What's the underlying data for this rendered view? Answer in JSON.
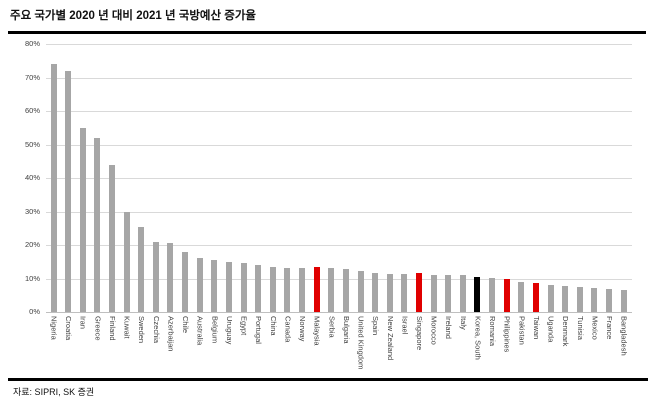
{
  "chart_data": {
    "type": "bar",
    "title": "주요 국가별 2020 년 대비 2021 년 국방예산 증가율",
    "source": "자료: SIPRI, SK 증권",
    "ylabel": "",
    "xlabel": "",
    "ylim": [
      0,
      80
    ],
    "yticks": [
      0,
      10,
      20,
      30,
      40,
      50,
      60,
      70,
      80
    ],
    "ytick_suffix": "%",
    "grid": "horizontal",
    "legend": "none",
    "categories": [
      "Nigeria",
      "Croatia",
      "Iran",
      "Greece",
      "Finland",
      "Kuwait",
      "Sweden",
      "Czechia",
      "Azerbaijan",
      "Chile",
      "Australia",
      "Belgium",
      "Uruguay",
      "Egypt",
      "Portugal",
      "China",
      "Canada",
      "Norway",
      "Malaysia",
      "Serbia",
      "Bulgaria",
      "United Kingdom",
      "Spain",
      "New Zealand",
      "Israel",
      "Singapore",
      "Morocco",
      "Ireland",
      "Italy",
      "Korea, South",
      "Romania",
      "Philippines",
      "Pakistan",
      "Taiwan",
      "Uganda",
      "Denmark",
      "Tunisia",
      "Mexico",
      "France",
      "Bangladesh"
    ],
    "values": [
      74,
      72,
      55,
      52,
      44,
      30,
      25.5,
      21,
      20.5,
      18,
      16,
      15.5,
      15,
      14.5,
      14,
      13.5,
      13.2,
      13.2,
      13.5,
      13,
      12.7,
      12.2,
      11.5,
      11.3,
      11.3,
      11.5,
      11,
      11,
      11,
      10.5,
      10.2,
      10,
      9,
      8.7,
      8,
      7.8,
      7.5,
      7.3,
      6.8,
      6.5
    ],
    "bar_colors": [
      "gray",
      "gray",
      "gray",
      "gray",
      "gray",
      "gray",
      "gray",
      "gray",
      "gray",
      "gray",
      "gray",
      "gray",
      "gray",
      "gray",
      "gray",
      "gray",
      "gray",
      "gray",
      "red",
      "gray",
      "gray",
      "gray",
      "gray",
      "gray",
      "gray",
      "red",
      "gray",
      "gray",
      "gray",
      "black",
      "gray",
      "red",
      "gray",
      "red",
      "gray",
      "gray",
      "gray",
      "gray",
      "gray",
      "gray"
    ],
    "highlight_red_countries": [
      "Malaysia",
      "Singapore",
      "Philippines",
      "Taiwan"
    ],
    "highlight_black_countries": [
      "Korea, South"
    ],
    "colors": {
      "bar_default": "#a6a6a6",
      "bar_highlight": "#e00000",
      "bar_emphasis": "#000000"
    }
  }
}
